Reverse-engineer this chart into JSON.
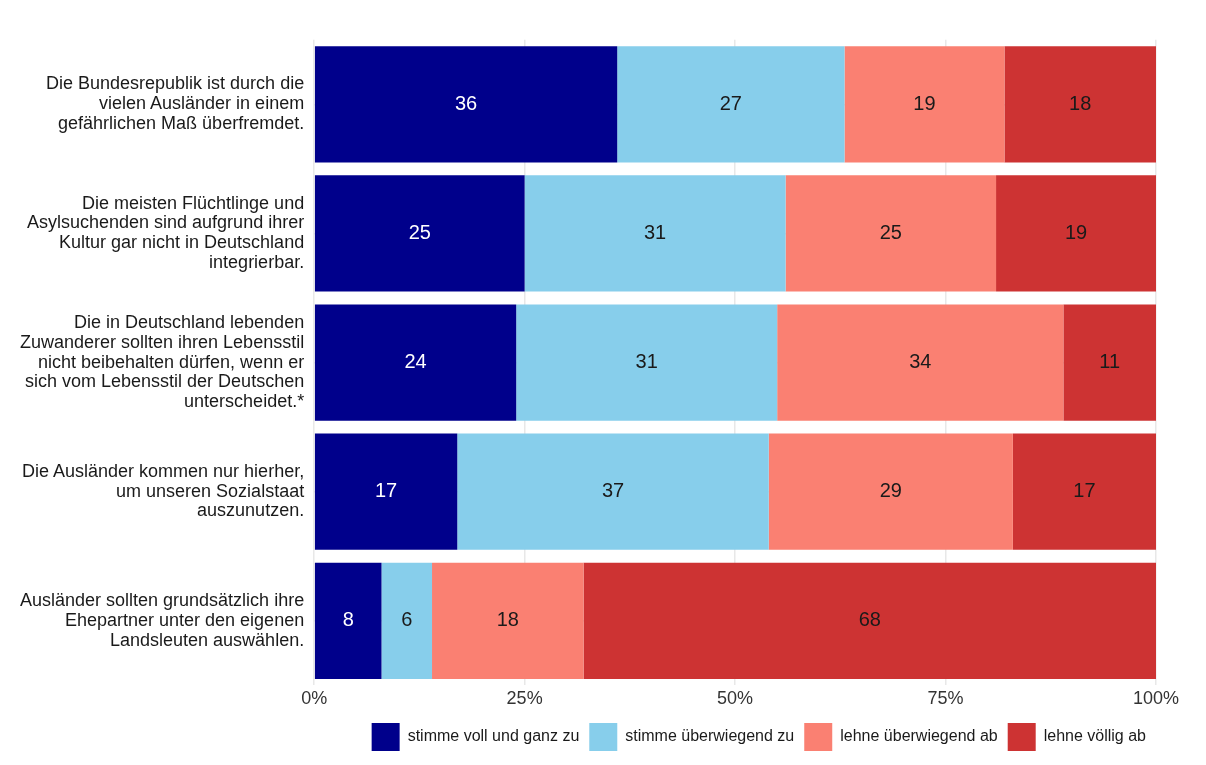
{
  "chart_data": {
    "type": "bar",
    "orientation": "horizontal",
    "stacked": true,
    "categories": [
      "Die Bundesrepublik ist durch die vielen Ausländer in einem gefährlichen Maß überfremdet.",
      "Die meisten Flüchtlinge und Asylsuchenden sind aufgrund ihrer Kultur gar nicht in Deutschland integrierbar.",
      "Die in Deutschland lebenden Zuwanderer sollten ihren Lebensstil nicht beibehalten dürfen, wenn er sich vom Lebensstil der Deutschen unterscheidet.*",
      "Die Ausländer kommen nur hierher, um unseren Sozialstaat auszunutzen.",
      "Ausländer sollten grundsätzlich ihre Ehepartner unter den eigenen Landsleuten auswählen."
    ],
    "series": [
      {
        "name": "stimme voll und ganz zu",
        "color": "#00008b",
        "values": [
          36,
          25,
          24,
          17,
          8
        ]
      },
      {
        "name": "stimme überwiegend zu",
        "color": "#87ceeb",
        "values": [
          27,
          31,
          31,
          37,
          6
        ]
      },
      {
        "name": "lehne überwiegend ab",
        "color": "#fa8072",
        "values": [
          19,
          25,
          34,
          29,
          18
        ]
      },
      {
        "name": "lehne völlig ab",
        "color": "#cd3333",
        "values": [
          18,
          19,
          11,
          17,
          68
        ]
      }
    ],
    "xlim": [
      0,
      100
    ],
    "xticks": [
      {
        "value": 0,
        "label": "0%"
      },
      {
        "value": 25,
        "label": "25%"
      },
      {
        "value": 50,
        "label": "50%"
      },
      {
        "value": 75,
        "label": "75%"
      },
      {
        "value": 100,
        "label": "100%"
      }
    ],
    "data_labels": true,
    "grid": true,
    "legend": "bottom right"
  }
}
